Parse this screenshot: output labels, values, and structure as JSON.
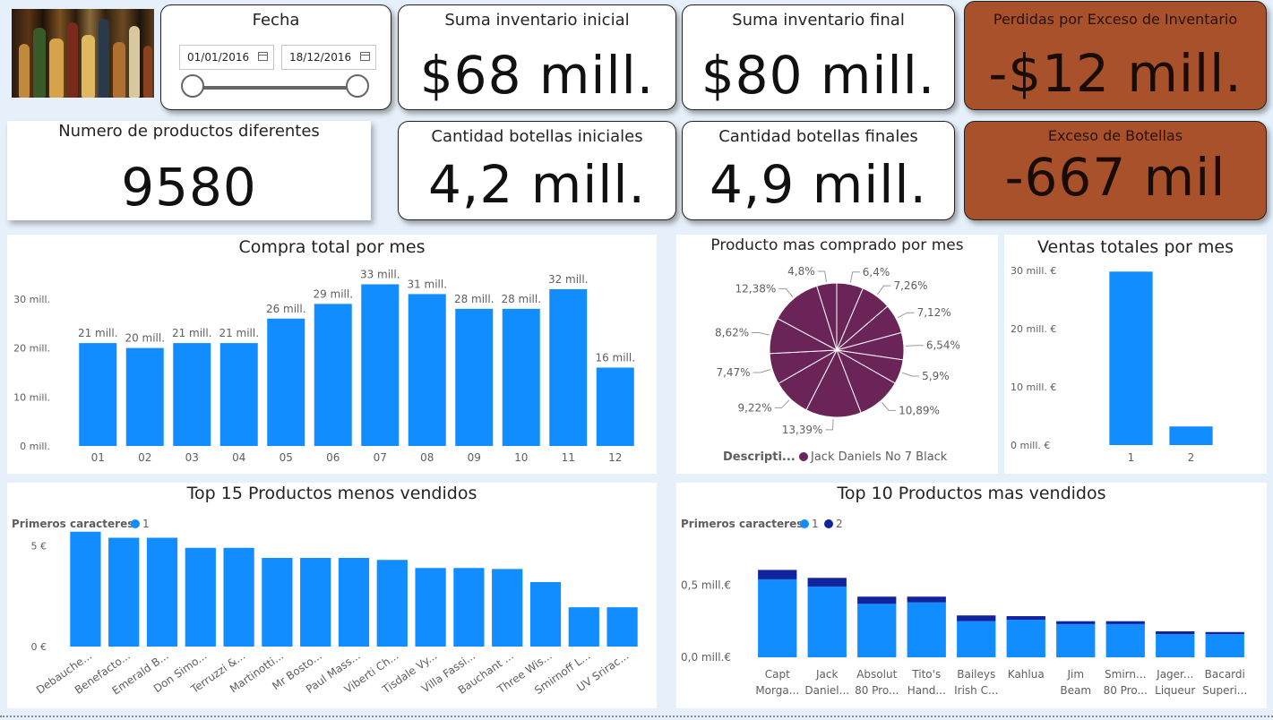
{
  "fecha": {
    "title": "Fecha",
    "start": "01/01/2016",
    "end": "18/12/2016"
  },
  "kpis": {
    "inv_inicial": {
      "label": "Suma inventario inicial",
      "value": "$68 mill."
    },
    "inv_final": {
      "label": "Suma inventario final",
      "value": "$80 mill."
    },
    "perdidas": {
      "label": "Perdidas por Exceso de Inventario",
      "value": "-$12 mill."
    },
    "productos": {
      "label": "Numero de productos diferentes",
      "value": "9580"
    },
    "bot_iniciales": {
      "label": "Cantidad botellas iniciales",
      "value": "4,2 mill."
    },
    "bot_finales": {
      "label": "Cantidad botellas finales",
      "value": "4,9 mill."
    },
    "exceso": {
      "label": "Exceso de Botellas",
      "value": "-667 mil"
    }
  },
  "colors": {
    "accent": "#118dff",
    "dark_series": "#12239e",
    "pie": "#6b2457",
    "alert": "#a8512a"
  },
  "chart_data": [
    {
      "id": "compra_mes",
      "type": "bar",
      "title": "Compra total por mes",
      "categories": [
        "01",
        "02",
        "03",
        "04",
        "05",
        "06",
        "07",
        "08",
        "09",
        "10",
        "11",
        "12"
      ],
      "values": [
        21,
        20,
        21,
        21,
        26,
        29,
        33,
        31,
        28,
        28,
        32,
        16
      ],
      "data_labels": [
        "21 mill.",
        "20 mill.",
        "21 mill.",
        "21 mill.",
        "26 mill.",
        "29 mill.",
        "33 mill.",
        "31 mill.",
        "28 mill.",
        "28 mill.",
        "32 mill.",
        "16 mill."
      ],
      "y_ticks": [
        0,
        10,
        20,
        30
      ],
      "y_tick_labels": [
        "0 mill.",
        "10 mill.",
        "20 mill.",
        "30 mill."
      ],
      "ylim": [
        0,
        34
      ],
      "units": "mill."
    },
    {
      "id": "producto_mes",
      "type": "pie",
      "title": "Producto mas comprado por mes",
      "values": [
        6.4,
        7.26,
        7.12,
        6.54,
        5.9,
        10.89,
        13.39,
        9.22,
        7.47,
        8.62,
        12.38,
        4.8
      ],
      "labels": [
        "6,4%",
        "7,26%",
        "7,12%",
        "6,54%",
        "5,9%",
        "10,89%",
        "13,39%",
        "9,22%",
        "7,47%",
        "8,62%",
        "12,38%",
        "4,8%"
      ],
      "legend_title": "Descripti...",
      "legend": [
        "Jack Daniels No 7 Black"
      ],
      "legend_position": "bottom"
    },
    {
      "id": "ventas_mes",
      "type": "bar",
      "title": "Ventas totales por mes",
      "categories": [
        "1",
        "2"
      ],
      "values": [
        29.8,
        3.2
      ],
      "y_ticks": [
        0,
        10,
        20,
        30
      ],
      "y_tick_labels": [
        "0 mill. €",
        "10 mill. €",
        "20 mill. €",
        "30 mill. €"
      ],
      "ylim": [
        0,
        30
      ]
    },
    {
      "id": "menos_vendidos",
      "type": "bar",
      "title": "Top 15 Productos menos vendidos",
      "legend_title": "Primeros caracteres",
      "legend": [
        "1"
      ],
      "categories": [
        "Debauche...",
        "Benefacto...",
        "Emerald B...",
        "Don Simo...",
        "Terruzzi &...",
        "Martinotti...",
        "Mr Bosto...",
        "Paul Mass...",
        "Viberti Ch...",
        "Tisdale Vy...",
        "Villa Fassi...",
        "Bauchant ...",
        "Three Wis...",
        "Smirnoff L...",
        "UV Srirac..."
      ],
      "values": [
        5.7,
        5.4,
        5.4,
        4.9,
        4.9,
        4.4,
        4.4,
        4.4,
        4.3,
        3.9,
        3.9,
        3.85,
        3.2,
        1.95,
        1.95
      ],
      "y_ticks": [
        0,
        5
      ],
      "y_tick_labels": [
        "0 €",
        "5 €"
      ],
      "ylim": [
        0,
        6
      ]
    },
    {
      "id": "mas_vendidos",
      "type": "bar",
      "stacked": true,
      "title": "Top 10 Productos mas vendidos",
      "legend_title": "Primeros caracteres",
      "legend": [
        "1",
        "2"
      ],
      "categories": [
        [
          "Capt",
          "Morga..."
        ],
        [
          "Jack",
          "Daniel..."
        ],
        [
          "Absolut",
          "80 Pro..."
        ],
        [
          "Tito's",
          "Hand..."
        ],
        [
          "Baileys",
          "Irish C..."
        ],
        [
          "Kahlua",
          ""
        ],
        [
          "Jim",
          "Beam"
        ],
        [
          "Smirn...",
          "80 Pro..."
        ],
        [
          "Jager...",
          "Liqueur"
        ],
        [
          "Bacardi",
          "Superi..."
        ]
      ],
      "series": [
        {
          "name": "1",
          "values": [
            0.54,
            0.49,
            0.37,
            0.38,
            0.25,
            0.26,
            0.23,
            0.23,
            0.16,
            0.16
          ]
        },
        {
          "name": "2",
          "values": [
            0.065,
            0.06,
            0.05,
            0.04,
            0.04,
            0.025,
            0.02,
            0.02,
            0.02,
            0.015
          ]
        }
      ],
      "y_ticks": [
        0,
        0.5
      ],
      "y_tick_labels": [
        "0,0 mill.€",
        "0,5 mill.€"
      ],
      "ylim": [
        0,
        0.62
      ]
    }
  ]
}
